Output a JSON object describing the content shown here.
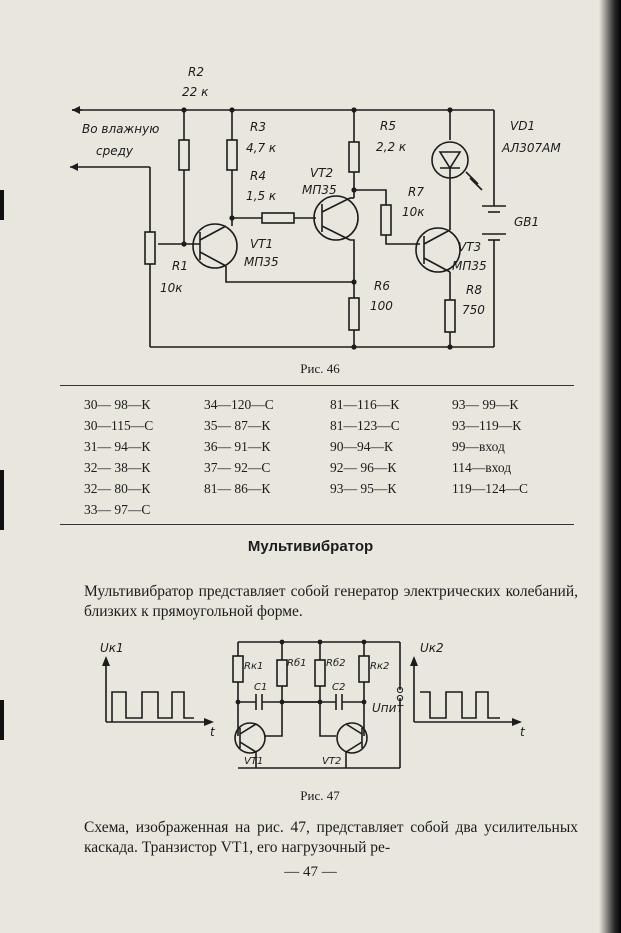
{
  "figure46": {
    "caption": "Рис. 46",
    "labels": {
      "input_line1": "Во влажную",
      "input_line2": "среду",
      "r2_name": "R2",
      "r2_val": "22 к",
      "r3_name": "R3",
      "r3_val": "4,7 к",
      "r4_name": "R4",
      "r4_val": "1,5 к",
      "r5_name": "R5",
      "r5_val": "2,2 к",
      "r7_name": "R7",
      "r7_val": "10к",
      "r1_name": "R1",
      "r1_val": "10к",
      "r6_name": "R6",
      "r6_val": "100",
      "r8_name": "R8",
      "r8_val": "750",
      "vt1_name": "VT1",
      "vt1_type": "МП35",
      "vt2_name": "VT2",
      "vt2_type": "МП35",
      "vt3_name": "VT3",
      "vt3_type": "МП35",
      "vd1_name": "VD1",
      "vd1_type": "АЛ307АМ",
      "gb1_name": "GB1"
    }
  },
  "connections": [
    [
      "30— 98—К",
      "34—120—С",
      "81—116—К",
      "93— 99—К"
    ],
    [
      "30—115—С",
      "35— 87—К",
      "81—123—С",
      "93—119—К"
    ],
    [
      "31— 94—К",
      "36— 91—К",
      "90—94—К",
      "99—вход"
    ],
    [
      "32— 38—К",
      "37— 92—С",
      "92— 96—К",
      "114—вход"
    ],
    [
      "32— 80—К",
      "81— 86—К",
      "93— 95—К",
      "119—124—С"
    ],
    [
      "33— 97—С",
      "",
      "",
      ""
    ]
  ],
  "section_title": "Мультивибратор",
  "paragraph1": "Мультивибратор представляет собой генератор электрических колебаний, близких к прямоугольной форме.",
  "figure47": {
    "caption": "Рис. 47",
    "labels": {
      "uk1": "Uк1",
      "uk2": "Uк2",
      "t1": "t",
      "t2": "t",
      "rk1": "Rк1",
      "rb1": "Rб1",
      "rb2": "Rб2",
      "rk2": "Rк2",
      "c1": "С1",
      "c2": "С2",
      "upit": "Uпит",
      "vt1": "VT1",
      "vt2": "VT2"
    }
  },
  "paragraph2": "Схема, изображенная на рис. 47, представляет собой два усилительных каскада. Транзистор VT1, его нагрузочный ре-",
  "page_number": "— 47 —"
}
